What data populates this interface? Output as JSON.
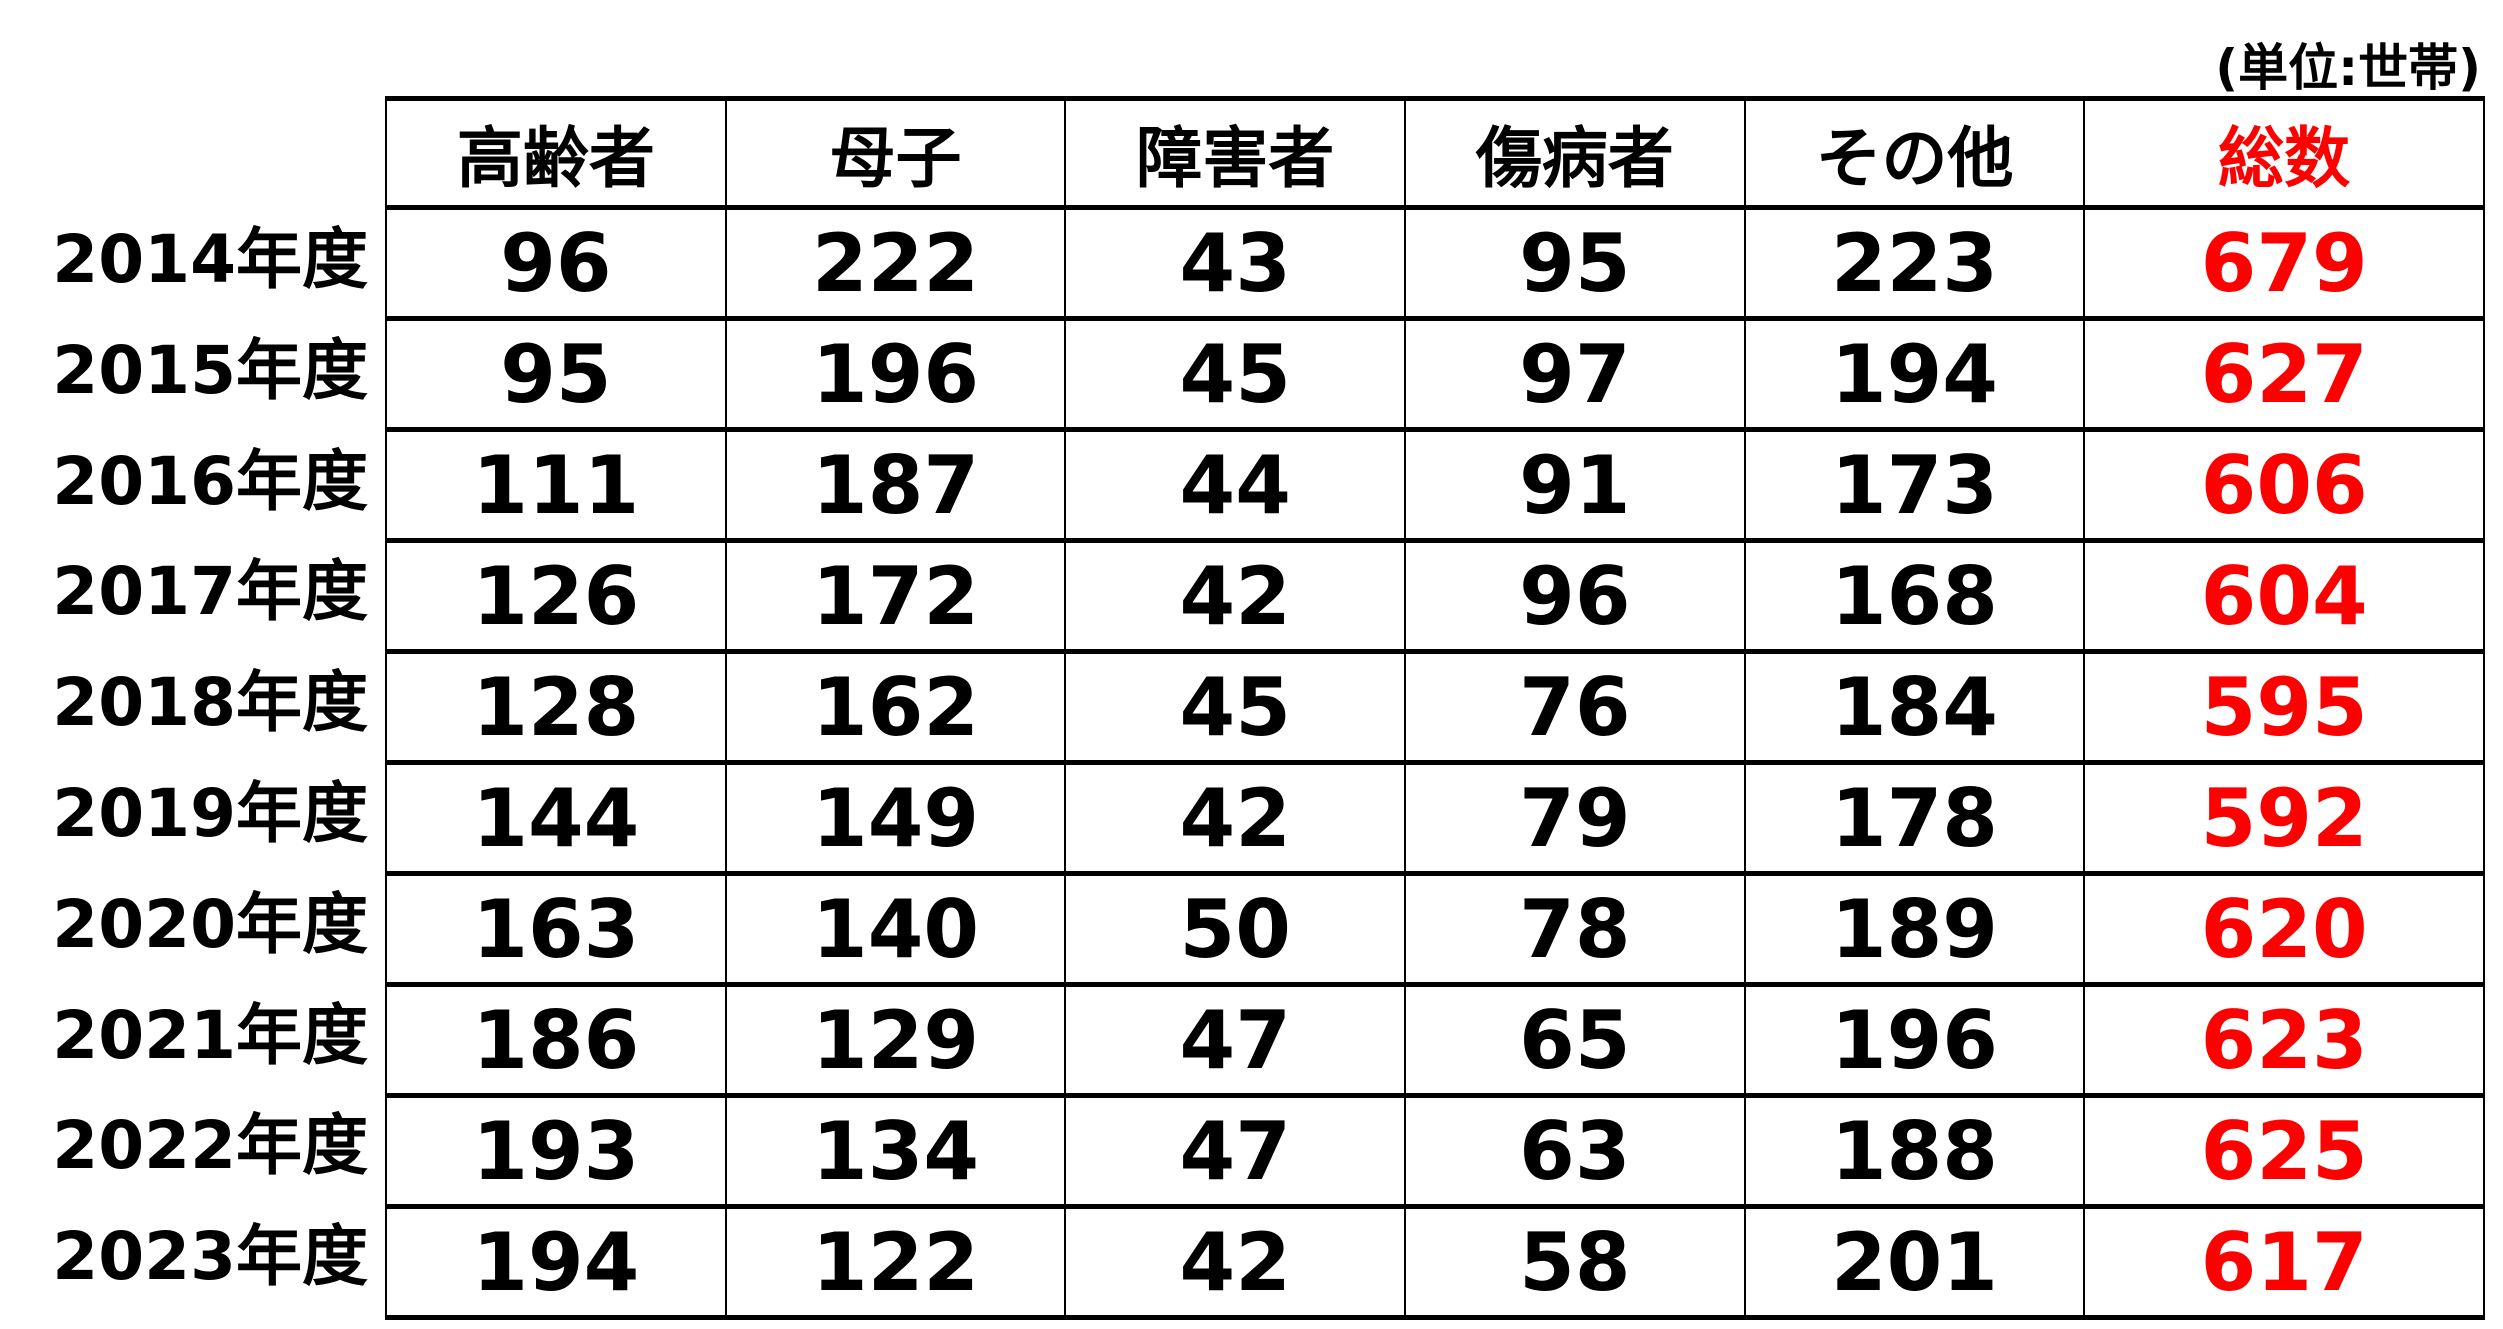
{
  "unit_label": "(単位:世帯)",
  "headers": [
    "高齢者",
    "母子",
    "障害者",
    "傷病者",
    "その他",
    "総数"
  ],
  "rows": [
    {
      "year": "2014年度",
      "values": [
        "96",
        "222",
        "43",
        "95",
        "223",
        "679"
      ]
    },
    {
      "year": "2015年度",
      "values": [
        "95",
        "196",
        "45",
        "97",
        "194",
        "627"
      ]
    },
    {
      "year": "2016年度",
      "values": [
        "111",
        "187",
        "44",
        "91",
        "173",
        "606"
      ]
    },
    {
      "year": "2017年度",
      "values": [
        "126",
        "172",
        "42",
        "96",
        "168",
        "604"
      ]
    },
    {
      "year": "2018年度",
      "values": [
        "128",
        "162",
        "45",
        "76",
        "184",
        "595"
      ]
    },
    {
      "year": "2019年度",
      "values": [
        "144",
        "149",
        "42",
        "79",
        "178",
        "592"
      ]
    },
    {
      "year": "2020年度",
      "values": [
        "163",
        "140",
        "50",
        "78",
        "189",
        "620"
      ]
    },
    {
      "year": "2021年度",
      "values": [
        "186",
        "129",
        "47",
        "65",
        "196",
        "623"
      ]
    },
    {
      "year": "2022年度",
      "values": [
        "193",
        "134",
        "47",
        "63",
        "188",
        "625"
      ]
    },
    {
      "year": "2023年度",
      "values": [
        "194",
        "122",
        "42",
        "58",
        "201",
        "617"
      ]
    }
  ],
  "colors": {
    "total": "#ff0000",
    "text": "#000000"
  }
}
